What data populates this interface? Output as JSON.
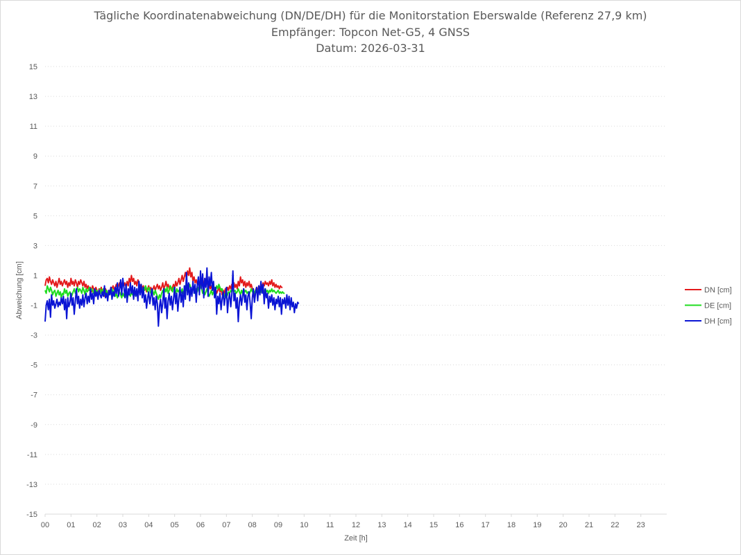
{
  "chart_data": {
    "type": "line",
    "title_lines": [
      "Tägliche Koordinatenabweichung (DN/DE/DH) für die Monitorstation Eberswalde (Referenz 27,9 km)",
      "Empfänger: Topcon Net-G5, 4 GNSS",
      "Datum: 2026-03-31"
    ],
    "xlabel": "Zeit [h]",
    "ylabel": "Abweichung [cm]",
    "xlim": [
      0,
      24
    ],
    "ylim": [
      -15,
      15
    ],
    "x_ticks": [
      "00",
      "01",
      "02",
      "03",
      "04",
      "05",
      "06",
      "07",
      "08",
      "09",
      "10",
      "11",
      "12",
      "13",
      "14",
      "15",
      "16",
      "17",
      "18",
      "19",
      "20",
      "21",
      "22",
      "23"
    ],
    "y_ticks": [
      15,
      13,
      11,
      9,
      7,
      5,
      3,
      1,
      -1,
      -3,
      -5,
      -7,
      -9,
      -11,
      -13,
      -15
    ],
    "grid": "horizontal-dotted",
    "legend_position": "right",
    "x_step_hours": 0.0416667,
    "series": [
      {
        "name": "DN [cm]",
        "color": "#e31a1c",
        "values": [
          0.3,
          0.7,
          0.8,
          0.5,
          0.9,
          0.6,
          0.4,
          0.7,
          0.5,
          0.3,
          0.6,
          0.2,
          0.5,
          0.8,
          0.4,
          0.6,
          0.3,
          0.5,
          0.7,
          0.4,
          0.6,
          0.2,
          0.5,
          0.3,
          0.8,
          0.4,
          0.6,
          0.3,
          0.7,
          0.5,
          0.2,
          0.6,
          0.4,
          0.7,
          0.5,
          0.3,
          0.6,
          0.2,
          0.4,
          0.1,
          0.3,
          0.0,
          0.2,
          -0.1,
          0.3,
          0.1,
          -0.2,
          0.2,
          0.0,
          -0.3,
          0.1,
          -0.1,
          0.2,
          -0.2,
          0.0,
          -0.4,
          0.1,
          -0.2,
          -0.3,
          0.0,
          -0.1,
          0.2,
          0.1,
          0.3,
          0.0,
          0.2,
          0.4,
          0.1,
          0.3,
          0.5,
          0.2,
          0.4,
          0.6,
          0.3,
          0.5,
          0.2,
          0.6,
          0.3,
          0.8,
          0.5,
          1.0,
          0.6,
          0.8,
          0.4,
          0.6,
          0.3,
          0.7,
          0.5,
          0.2,
          0.4,
          0.1,
          0.3,
          0.0,
          0.2,
          -0.1,
          0.1,
          0.3,
          0.0,
          0.2,
          -0.1,
          0.1,
          0.3,
          0.0,
          0.2,
          0.4,
          0.1,
          0.3,
          0.0,
          0.2,
          0.5,
          0.1,
          0.3,
          0.6,
          0.2,
          0.4,
          0.1,
          0.3,
          0.0,
          0.2,
          0.4,
          0.1,
          0.6,
          0.3,
          0.5,
          0.8,
          0.4,
          0.7,
          1.0,
          0.6,
          0.9,
          1.2,
          0.8,
          1.3,
          1.0,
          1.5,
          0.9,
          1.2,
          0.6,
          0.9,
          0.5,
          0.7,
          0.4,
          0.6,
          0.2,
          0.5,
          0.3,
          0.6,
          0.3,
          0.8,
          0.4,
          0.6,
          0.2,
          0.4,
          0.1,
          0.3,
          0.0,
          0.2,
          -0.1,
          0.1,
          -0.2,
          0.0,
          0.2,
          -0.1,
          0.1,
          -0.3,
          0.0,
          -0.2,
          0.1,
          -0.1,
          0.2,
          0.0,
          0.3,
          0.1,
          0.4,
          0.2,
          0.5,
          0.2,
          0.4,
          0.1,
          0.6,
          0.3,
          0.9,
          0.5,
          0.7,
          0.3,
          0.6,
          0.2,
          0.5,
          0.3,
          0.6,
          0.2,
          0.4,
          0.1,
          -0.3,
          -0.6,
          0.0,
          0.2,
          -0.1,
          0.3,
          0.1,
          0.4,
          0.2,
          0.5,
          0.3,
          0.6,
          0.4,
          0.5,
          0.3,
          0.6,
          0.4,
          0.7,
          0.3,
          0.5,
          0.2,
          0.4,
          0.2,
          0.3,
          0.1,
          0.3,
          0.2,
          0.2
        ],
        "values_note_hidden": ""
      },
      {
        "name": "DE [cm]",
        "color": "#1fdc1f",
        "values": [
          0.0,
          -0.2,
          0.3,
          0.1,
          -0.1,
          0.2,
          0.0,
          -0.3,
          -0.1,
          0.0,
          -0.4,
          -0.2,
          0.0,
          -0.3,
          -0.1,
          -0.5,
          -0.2,
          -0.3,
          0.1,
          -0.2,
          0.0,
          -0.4,
          -0.2,
          -0.1,
          -0.5,
          -0.3,
          -0.1,
          0.1,
          -0.2,
          0.0,
          0.2,
          -0.1,
          0.1,
          0.0,
          -0.2,
          0.2,
          0.0,
          -0.3,
          0.1,
          -0.1,
          0.0,
          0.2,
          -0.1,
          0.1,
          0.0,
          -0.2,
          0.1,
          -0.1,
          0.0,
          -0.3,
          -0.1,
          0.1,
          -0.2,
          0.0,
          0.1,
          -0.3,
          -0.1,
          0.0,
          -0.4,
          -0.2,
          -0.3,
          -0.1,
          0.1,
          -0.2,
          0.0,
          -0.4,
          -0.2,
          -0.5,
          -0.3,
          -0.1,
          -0.3,
          -0.5,
          -0.2,
          -0.4,
          -0.1,
          -0.3,
          -0.6,
          -0.3,
          -0.2,
          -0.4,
          -0.1,
          -0.3,
          0.0,
          -0.2,
          -0.4,
          -0.1,
          -0.3,
          0.0,
          -0.2,
          0.1,
          -0.1,
          0.2,
          0.0,
          0.3,
          0.1,
          -0.1,
          0.2,
          0.0,
          -0.2,
          0.1,
          -0.1,
          -0.3,
          0.0,
          -0.2,
          -0.4,
          -0.6,
          -0.3,
          -0.5,
          -0.2,
          0.0,
          -0.3,
          0.1,
          -0.1,
          0.2,
          -0.2,
          0.0,
          0.3,
          0.1,
          -0.1,
          0.2,
          0.0,
          -0.2,
          0.1,
          -0.1,
          0.0,
          -0.3,
          -0.1,
          0.1,
          -0.2,
          0.0,
          0.3,
          0.1,
          -0.1,
          0.2,
          0.4,
          0.1,
          -0.1,
          0.2,
          0.0,
          -0.2,
          0.1,
          -0.1,
          0.2,
          0.0,
          0.3,
          0.1,
          -0.2,
          0.0,
          -0.3,
          -0.1,
          0.1,
          -0.2,
          -0.4,
          -0.2,
          0.0,
          -0.3,
          -0.1,
          0.2,
          0.0,
          0.3,
          0.1,
          0.4,
          0.2,
          0.0,
          0.1,
          -0.2,
          -0.4,
          -0.2,
          -0.5,
          -0.3,
          -0.1,
          -0.2,
          0.0,
          -0.1,
          0.1,
          -0.1,
          0.0,
          -0.2,
          -0.1,
          0.1,
          -0.1,
          -0.3,
          0.0,
          -0.2,
          0.1,
          -0.1,
          0.0,
          -0.2,
          -0.1,
          -0.3,
          -0.1,
          0.1,
          -0.1,
          0.0,
          -0.2,
          0.0,
          0.1,
          -0.1,
          0.0,
          -0.2,
          -0.1,
          0.1,
          0.0,
          -0.1,
          0.1,
          -0.1,
          0.0,
          -0.2,
          0.0,
          -0.1,
          0.1,
          -0.1,
          0.0,
          -0.1,
          -0.2,
          -0.1,
          0.0,
          -0.2,
          -0.1,
          -0.2,
          -0.1,
          -0.2,
          -0.2
        ]
      },
      {
        "name": "DH [cm]",
        "color": "#0a14d4",
        "values": [
          -2.1,
          -1.0,
          -0.7,
          -1.3,
          -0.6,
          -1.8,
          -0.3,
          -1.0,
          -0.7,
          -1.2,
          -0.9,
          -0.6,
          -1.1,
          -0.8,
          -1.0,
          -0.5,
          -0.9,
          -0.4,
          -1.3,
          -0.6,
          -1.9,
          -0.5,
          -1.1,
          -0.8,
          -0.2,
          -1.0,
          -0.5,
          -1.6,
          -0.7,
          0.1,
          -0.9,
          -0.4,
          -1.2,
          -0.6,
          -1.0,
          -0.3,
          -1.1,
          -0.5,
          -0.2,
          -0.9,
          -0.4,
          -0.8,
          0.1,
          -0.6,
          -0.2,
          -0.9,
          0.1,
          -0.4,
          -0.1,
          -0.6,
          0.0,
          -0.3,
          -0.5,
          -0.1,
          -0.4,
          0.3,
          -0.5,
          -0.2,
          -0.7,
          0.0,
          -0.3,
          0.2,
          -0.6,
          -0.1,
          -0.4,
          0.2,
          -0.2,
          0.5,
          -0.4,
          0.1,
          0.7,
          -0.3,
          0.8,
          0.2,
          -0.5,
          0.4,
          -0.8,
          0.1,
          -0.3,
          0.5,
          -0.2,
          0.3,
          -0.6,
          0.2,
          -0.4,
          0.1,
          -0.7,
          0.6,
          -0.3,
          0.4,
          -0.5,
          0.2,
          -0.8,
          -0.3,
          -1.2,
          -0.5,
          -0.1,
          -0.9,
          -0.4,
          0.1,
          -1.0,
          -0.5,
          -1.3,
          -0.4,
          -0.9,
          -2.4,
          -1.1,
          -0.6,
          -1.5,
          -0.8,
          0.1,
          -1.2,
          -0.5,
          -1.9,
          -0.7,
          -0.2,
          -1.0,
          -0.4,
          -1.3,
          -0.6,
          0.2,
          -0.9,
          -0.2,
          -1.4,
          -0.5,
          0.2,
          -0.8,
          -0.1,
          -1.1,
          0.3,
          -0.6,
          1.2,
          -0.3,
          0.5,
          -0.7,
          0.2,
          -0.4,
          0.6,
          -0.2,
          0.4,
          -0.8,
          0.3,
          0.9,
          -0.3,
          1.3,
          0.1,
          1.1,
          -0.5,
          0.8,
          0.2,
          1.5,
          -0.4,
          0.9,
          0.3,
          1.2,
          0.0,
          0.6,
          -0.5,
          0.2,
          -1.6,
          -0.4,
          -0.9,
          -0.2,
          -1.3,
          -0.6,
          -0.1,
          -1.0,
          -0.4,
          0.2,
          -1.5,
          -0.6,
          -0.2,
          -1.1,
          -0.3,
          1.3,
          -0.7,
          -0.2,
          -1.2,
          -0.5,
          -2.1,
          -0.8,
          -0.3,
          -1.0,
          -0.4,
          0.1,
          -0.8,
          -0.3,
          -1.3,
          -0.4,
          -0.1,
          -0.9,
          -1.9,
          -0.5,
          0.1,
          -0.8,
          -0.2,
          0.2,
          -0.7,
          0.3,
          -0.3,
          0.6,
          -0.2,
          0.4,
          -0.9,
          0.1,
          -0.5,
          -0.2,
          -1.2,
          -0.4,
          -0.8,
          -0.3,
          -1.0,
          -0.5,
          -1.3,
          -0.6,
          -0.9,
          -0.4,
          -1.1,
          -0.5,
          -1.6,
          -0.6,
          -0.9,
          -0.5,
          -1.2,
          -0.3,
          -1.0,
          -0.4,
          -1.3,
          -0.5,
          -1.1,
          -0.8,
          -1.5,
          -0.9,
          -1.2,
          -0.8,
          -0.9
        ]
      }
    ]
  }
}
